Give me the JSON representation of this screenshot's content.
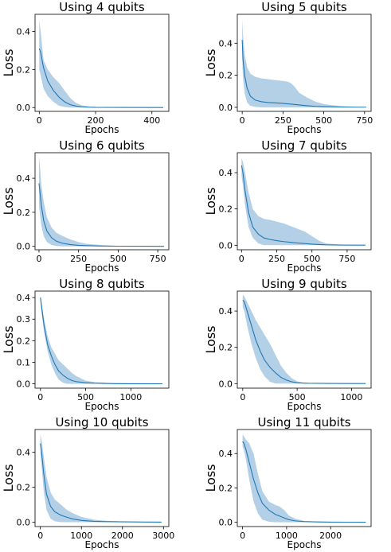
{
  "colors": {
    "line": "#1f77b4",
    "band": "#a6c8e3"
  },
  "chart_data": [
    {
      "type": "line",
      "title": "Using 4 qubits",
      "xlabel": "Epochs",
      "ylabel": "Loss",
      "xlim": [
        -15,
        460
      ],
      "ylim": [
        -0.02,
        0.49
      ],
      "xticks": [
        0,
        200,
        400
      ],
      "yticks": [
        0.0,
        0.2,
        0.4
      ],
      "xtick_labels": [
        "0",
        "200",
        "400"
      ],
      "ytick_labels": [
        "0.0",
        "0.2",
        "0.4"
      ],
      "series": [
        {
          "x": [
            0,
            5,
            15,
            30,
            50,
            70,
            90,
            110,
            130,
            150,
            175,
            200,
            300,
            440
          ],
          "mean": [
            0.31,
            0.29,
            0.21,
            0.14,
            0.09,
            0.055,
            0.03,
            0.015,
            0.008,
            0.004,
            0.002,
            0.001,
            0.0005,
            0.0003
          ],
          "upper": [
            0.46,
            0.4,
            0.25,
            0.2,
            0.16,
            0.13,
            0.09,
            0.05,
            0.025,
            0.012,
            0.006,
            0.003,
            0.002,
            0.001
          ],
          "lower": [
            0.2,
            0.17,
            0.1,
            0.06,
            0.03,
            0.01,
            0.003,
            0,
            0,
            0,
            0,
            0,
            0,
            0
          ]
        }
      ]
    },
    {
      "type": "line",
      "title": "Using 5 qubits",
      "xlabel": "Epochs",
      "ylabel": "Loss",
      "xlim": [
        -30,
        790
      ],
      "ylim": [
        -0.025,
        0.58
      ],
      "xticks": [
        0,
        250,
        500,
        750
      ],
      "yticks": [
        0.0,
        0.2,
        0.4
      ],
      "xtick_labels": [
        "0",
        "250",
        "500",
        "750"
      ],
      "ytick_labels": [
        "0.0",
        "0.2",
        "0.4"
      ],
      "series": [
        {
          "x": [
            0,
            5,
            15,
            30,
            50,
            80,
            120,
            160,
            200,
            250,
            280,
            300,
            320,
            350,
            400,
            450,
            500,
            600,
            700,
            760
          ],
          "mean": [
            0.42,
            0.3,
            0.2,
            0.12,
            0.07,
            0.045,
            0.035,
            0.03,
            0.028,
            0.025,
            0.022,
            0.02,
            0.018,
            0.015,
            0.01,
            0.006,
            0.004,
            0.002,
            0.001,
            0.001
          ],
          "upper": [
            0.55,
            0.45,
            0.33,
            0.25,
            0.21,
            0.19,
            0.18,
            0.175,
            0.17,
            0.165,
            0.16,
            0.15,
            0.13,
            0.09,
            0.06,
            0.035,
            0.02,
            0.008,
            0.003,
            0.002
          ],
          "lower": [
            0.3,
            0.18,
            0.09,
            0.03,
            0.01,
            0.003,
            0,
            0,
            0,
            0,
            0,
            0,
            0,
            0,
            0,
            0,
            0,
            0,
            0,
            0
          ]
        }
      ]
    },
    {
      "type": "line",
      "title": "Using 6 qubits",
      "xlabel": "Epochs",
      "ylabel": "Loss",
      "xlim": [
        -25,
        820
      ],
      "ylim": [
        -0.02,
        0.55
      ],
      "xticks": [
        0,
        250,
        500,
        750
      ],
      "yticks": [
        0.0,
        0.2,
        0.4
      ],
      "xtick_labels": [
        "0",
        "250",
        "500",
        "750"
      ],
      "ytick_labels": [
        "0.0",
        "0.2",
        "0.4"
      ],
      "series": [
        {
          "x": [
            0,
            5,
            15,
            30,
            50,
            80,
            110,
            150,
            200,
            250,
            300,
            400,
            500,
            650,
            790
          ],
          "mean": [
            0.37,
            0.33,
            0.24,
            0.15,
            0.09,
            0.05,
            0.03,
            0.018,
            0.01,
            0.006,
            0.004,
            0.002,
            0.001,
            0.0005,
            0.0003
          ],
          "upper": [
            0.53,
            0.48,
            0.36,
            0.26,
            0.17,
            0.11,
            0.08,
            0.06,
            0.04,
            0.025,
            0.015,
            0.007,
            0.003,
            0.002,
            0.001
          ],
          "lower": [
            0.24,
            0.2,
            0.12,
            0.06,
            0.025,
            0.008,
            0.002,
            0,
            0,
            0,
            0,
            0,
            0,
            0,
            0
          ]
        }
      ]
    },
    {
      "type": "line",
      "title": "Using 7 qubits",
      "xlabel": "Epochs",
      "ylabel": "Loss",
      "xlim": [
        -30,
        920
      ],
      "ylim": [
        -0.025,
        0.51
      ],
      "xticks": [
        0,
        250,
        500,
        750
      ],
      "yticks": [
        0.0,
        0.2,
        0.4
      ],
      "xtick_labels": [
        "0",
        "250",
        "500",
        "750"
      ],
      "ytick_labels": [
        "0.0",
        "0.2",
        "0.4"
      ],
      "series": [
        {
          "x": [
            0,
            10,
            25,
            50,
            80,
            120,
            160,
            200,
            250,
            300,
            350,
            400,
            450,
            500,
            550,
            600,
            700,
            800,
            880
          ],
          "mean": [
            0.44,
            0.4,
            0.3,
            0.18,
            0.1,
            0.06,
            0.04,
            0.032,
            0.025,
            0.02,
            0.016,
            0.012,
            0.009,
            0.006,
            0.004,
            0.002,
            0.001,
            0.0005,
            0.0003
          ],
          "upper": [
            0.48,
            0.46,
            0.4,
            0.29,
            0.2,
            0.16,
            0.145,
            0.14,
            0.13,
            0.12,
            0.105,
            0.09,
            0.075,
            0.05,
            0.025,
            0.01,
            0.004,
            0.002,
            0.001
          ],
          "lower": [
            0.38,
            0.33,
            0.22,
            0.1,
            0.04,
            0.01,
            0,
            0,
            0,
            0,
            0,
            0,
            0,
            0,
            0,
            0,
            0,
            0,
            0
          ]
        }
      ]
    },
    {
      "type": "line",
      "title": "Using 8 qubits",
      "xlabel": "Epochs",
      "ylabel": "Loss",
      "xlim": [
        -60,
        1420
      ],
      "ylim": [
        -0.02,
        0.43
      ],
      "xticks": [
        0,
        500,
        1000
      ],
      "yticks": [
        0.0,
        0.1,
        0.2,
        0.3,
        0.4
      ],
      "xtick_labels": [
        "0",
        "500",
        "1000"
      ],
      "ytick_labels": [
        "0.0",
        "0.1",
        "0.2",
        "0.3",
        "0.4"
      ],
      "series": [
        {
          "x": [
            0,
            15,
            40,
            80,
            120,
            160,
            200,
            250,
            300,
            350,
            400,
            500,
            600,
            800,
            1000,
            1350
          ],
          "mean": [
            0.4,
            0.35,
            0.27,
            0.18,
            0.13,
            0.09,
            0.06,
            0.04,
            0.025,
            0.015,
            0.01,
            0.005,
            0.003,
            0.001,
            0.0005,
            0.0003
          ],
          "upper": [
            0.41,
            0.37,
            0.3,
            0.22,
            0.17,
            0.14,
            0.11,
            0.09,
            0.07,
            0.05,
            0.035,
            0.015,
            0.008,
            0.003,
            0.002,
            0.001
          ],
          "lower": [
            0.38,
            0.32,
            0.24,
            0.15,
            0.09,
            0.05,
            0.02,
            0.005,
            0,
            0,
            0,
            0,
            0,
            0,
            0,
            0
          ]
        }
      ]
    },
    {
      "type": "line",
      "title": "Using 9 qubits",
      "xlabel": "Epochs",
      "ylabel": "Loss",
      "xlim": [
        -50,
        1180
      ],
      "ylim": [
        -0.025,
        0.51
      ],
      "xticks": [
        0,
        500,
        1000
      ],
      "yticks": [
        0.0,
        0.2,
        0.4
      ],
      "xtick_labels": [
        "0",
        "500",
        "1000"
      ],
      "ytick_labels": [
        "0.0",
        "0.2",
        "0.4"
      ],
      "series": [
        {
          "x": [
            0,
            15,
            40,
            80,
            120,
            160,
            200,
            250,
            300,
            350,
            400,
            450,
            500,
            550,
            600,
            800,
            1000,
            1130
          ],
          "mean": [
            0.46,
            0.45,
            0.4,
            0.32,
            0.24,
            0.18,
            0.13,
            0.09,
            0.06,
            0.035,
            0.02,
            0.01,
            0.005,
            0.003,
            0.002,
            0.001,
            0.0005,
            0.0003
          ],
          "upper": [
            0.49,
            0.48,
            0.45,
            0.4,
            0.35,
            0.31,
            0.27,
            0.22,
            0.16,
            0.1,
            0.06,
            0.03,
            0.012,
            0.006,
            0.003,
            0.002,
            0.001,
            0.001
          ],
          "lower": [
            0.42,
            0.4,
            0.32,
            0.22,
            0.14,
            0.08,
            0.04,
            0.01,
            0,
            0,
            0,
            0,
            0,
            0,
            0,
            0,
            0,
            0
          ]
        }
      ]
    },
    {
      "type": "line",
      "title": "Using 10 qubits",
      "xlabel": "Epochs",
      "ylabel": "Loss",
      "xlim": [
        -130,
        3130
      ],
      "ylim": [
        -0.025,
        0.53
      ],
      "xticks": [
        0,
        1000,
        2000,
        3000
      ],
      "yticks": [
        0.0,
        0.2,
        0.4
      ],
      "xtick_labels": [
        "0",
        "1000",
        "2000",
        "3000"
      ],
      "ytick_labels": [
        "0.0",
        "0.2",
        "0.4"
      ],
      "series": [
        {
          "x": [
            0,
            30,
            80,
            150,
            250,
            350,
            500,
            650,
            800,
            1000,
            1300,
            1600,
            2000,
            2500,
            2950
          ],
          "mean": [
            0.45,
            0.4,
            0.28,
            0.16,
            0.09,
            0.06,
            0.04,
            0.028,
            0.018,
            0.01,
            0.005,
            0.003,
            0.002,
            0.001,
            0.0005
          ],
          "upper": [
            0.5,
            0.47,
            0.38,
            0.26,
            0.17,
            0.13,
            0.1,
            0.07,
            0.05,
            0.03,
            0.015,
            0.008,
            0.004,
            0.002,
            0.001
          ],
          "lower": [
            0.39,
            0.32,
            0.18,
            0.07,
            0.02,
            0.005,
            0,
            0,
            0,
            0,
            0,
            0,
            0,
            0,
            0
          ]
        }
      ]
    },
    {
      "type": "line",
      "title": "Using 11 qubits",
      "xlabel": "Epochs",
      "ylabel": "Loss",
      "xlim": [
        -120,
        2920
      ],
      "ylim": [
        -0.025,
        0.54
      ],
      "xticks": [
        0,
        1000,
        2000
      ],
      "yticks": [
        0.0,
        0.2,
        0.4
      ],
      "xtick_labels": [
        "0",
        "1000",
        "2000"
      ],
      "ytick_labels": [
        "0.0",
        "0.2",
        "0.4"
      ],
      "series": [
        {
          "x": [
            0,
            30,
            80,
            150,
            250,
            350,
            450,
            600,
            750,
            850,
            950,
            1050,
            1200,
            1400,
            1700,
            2000,
            2400,
            2800
          ],
          "mean": [
            0.47,
            0.46,
            0.42,
            0.35,
            0.25,
            0.17,
            0.11,
            0.07,
            0.045,
            0.035,
            0.025,
            0.015,
            0.008,
            0.004,
            0.002,
            0.001,
            0.0005,
            0.0003
          ],
          "upper": [
            0.51,
            0.5,
            0.48,
            0.46,
            0.4,
            0.28,
            0.18,
            0.12,
            0.1,
            0.09,
            0.07,
            0.04,
            0.02,
            0.008,
            0.004,
            0.002,
            0.001,
            0.001
          ],
          "lower": [
            0.44,
            0.42,
            0.36,
            0.25,
            0.12,
            0.05,
            0.015,
            0.003,
            0,
            0,
            0,
            0,
            0,
            0,
            0,
            0,
            0,
            0
          ]
        }
      ]
    }
  ]
}
